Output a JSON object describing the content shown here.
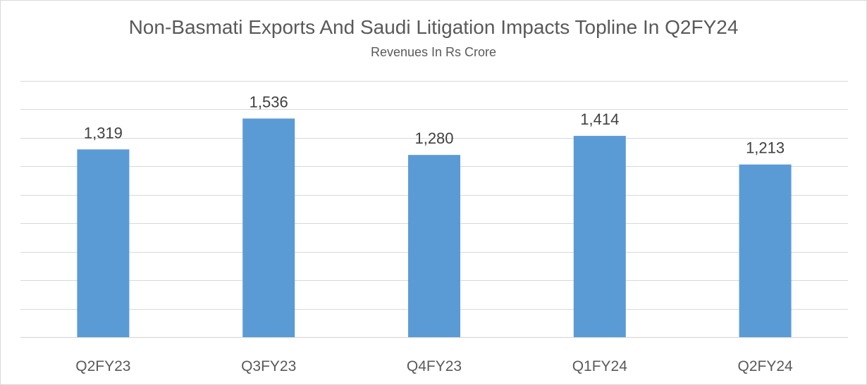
{
  "chart_data": {
    "type": "bar",
    "title": "Non-Basmati Exports And Saudi Litigation Impacts Topline In Q2FY24",
    "subtitle": "Revenues In Rs Crore",
    "categories": [
      "Q2FY23",
      "Q3FY23",
      "Q4FY23",
      "Q1FY24",
      "Q2FY24"
    ],
    "values": [
      1319,
      1536,
      1280,
      1414,
      1213
    ],
    "data_labels": [
      "1,319",
      "1,536",
      "1,280",
      "1,414",
      "1,213"
    ],
    "xlabel": "",
    "ylabel": "",
    "ylim": [
      0,
      1800
    ],
    "y_axis_visible": false,
    "grid": true,
    "legend": "none",
    "bar_color": "#5b9bd5"
  }
}
